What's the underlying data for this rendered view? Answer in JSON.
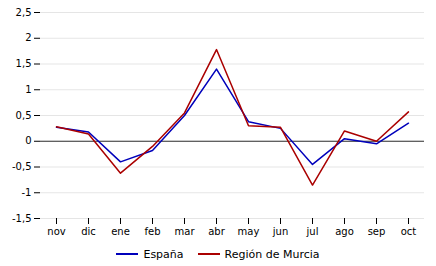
{
  "chart_data": {
    "type": "line",
    "categories": [
      "nov",
      "dic",
      "ene",
      "feb",
      "mar",
      "abr",
      "may",
      "jun",
      "jul",
      "ago",
      "sep",
      "oct"
    ],
    "series": [
      {
        "name": "España",
        "color": "#0000bb",
        "values": [
          0.27,
          0.18,
          -0.4,
          -0.18,
          0.5,
          1.4,
          0.38,
          0.25,
          -0.45,
          0.05,
          -0.05,
          0.35
        ]
      },
      {
        "name": "Región de Murcia",
        "color": "#aa0000",
        "values": [
          0.28,
          0.14,
          -0.62,
          -0.1,
          0.55,
          1.78,
          0.3,
          0.27,
          -0.85,
          0.2,
          0.0,
          0.57
        ]
      }
    ],
    "ylim": [
      -1.5,
      2.5
    ],
    "yticks": [
      {
        "value": -1.5,
        "label": "-1,5"
      },
      -1,
      {
        "value": -0.5,
        "label": "-0,5"
      },
      0,
      {
        "value": 0.5,
        "label": "0,5"
      },
      1,
      {
        "value": 1.5,
        "label": "1,5"
      },
      2,
      {
        "value": 2.5,
        "label": "2,5"
      }
    ],
    "grid": true,
    "legend": "bottom"
  }
}
